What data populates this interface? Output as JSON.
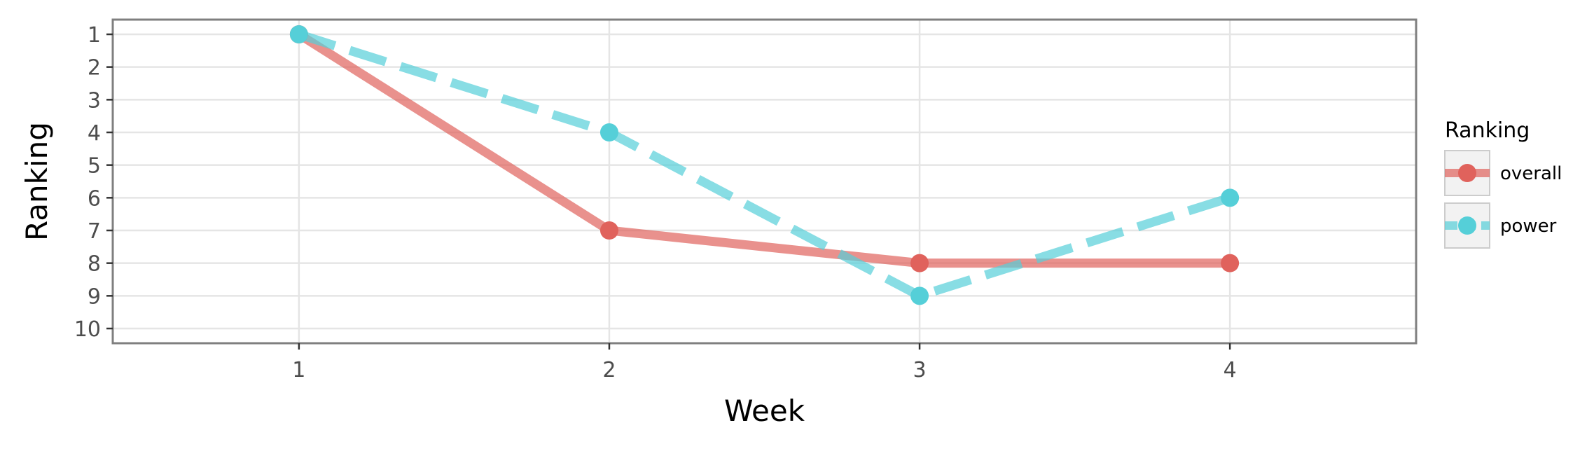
{
  "chart_data": {
    "type": "line",
    "title": "",
    "xlabel": "Week",
    "ylabel": "Ranking",
    "x": [
      1,
      2,
      3,
      4
    ],
    "x_ticks": [
      "1",
      "2",
      "3",
      "4"
    ],
    "y_ticks": [
      "1",
      "2",
      "3",
      "4",
      "5",
      "6",
      "7",
      "8",
      "9",
      "10"
    ],
    "xlim": [
      0.4,
      4.6
    ],
    "ylim": [
      10.45,
      0.55
    ],
    "y_reversed": true,
    "grid": true,
    "legend": {
      "title": "Ranking",
      "position": "right"
    },
    "series": [
      {
        "name": "overall",
        "values": [
          1,
          7,
          8,
          8
        ],
        "color": "#e0625c",
        "linestyle": "solid"
      },
      {
        "name": "power",
        "values": [
          1,
          4,
          9,
          6
        ],
        "color": "#55cfd8",
        "linestyle": "dashed"
      }
    ]
  }
}
